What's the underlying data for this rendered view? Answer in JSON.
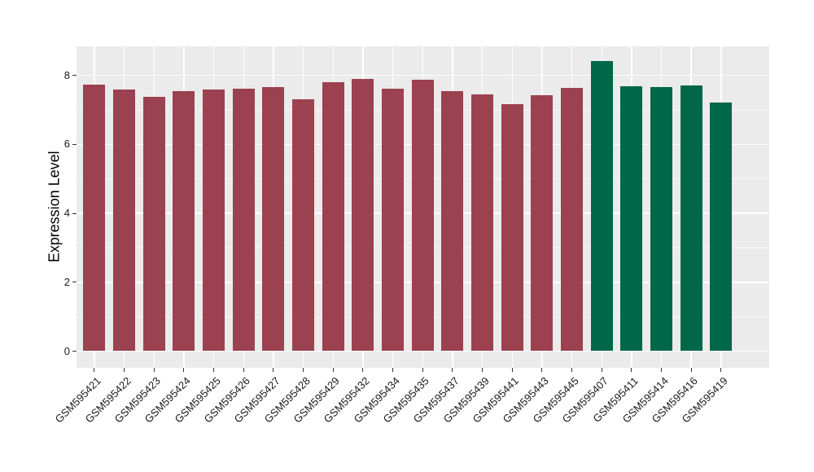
{
  "chart_data": {
    "type": "bar",
    "title": "",
    "xlabel": "",
    "ylabel": "Expression Level",
    "ylim": [
      -0.46,
      8.84
    ],
    "yticks": [
      0,
      2,
      4,
      6,
      8
    ],
    "minor_gridlines": [
      1,
      3,
      5,
      7
    ],
    "grid": "on",
    "legend": "none",
    "panel_background": "#EBEBEB",
    "gridline_color": "#FFFFFF",
    "axis_text_color": "#1a1a1a",
    "tick_mark_color": "#333333",
    "categories": [
      "GSM595421",
      "GSM595422",
      "GSM595423",
      "GSM595424",
      "GSM595425",
      "GSM595426",
      "GSM595427",
      "GSM595428",
      "GSM595429",
      "GSM595432",
      "GSM595434",
      "GSM595435",
      "GSM595437",
      "GSM595439",
      "GSM595441",
      "GSM595443",
      "GSM595445",
      "GSM595407",
      "GSM595411",
      "GSM595414",
      "GSM595416",
      "GSM595419"
    ],
    "values": [
      7.74,
      7.59,
      7.38,
      7.55,
      7.58,
      7.62,
      7.66,
      7.3,
      7.81,
      7.89,
      7.61,
      7.87,
      7.55,
      7.44,
      7.17,
      7.42,
      7.64,
      8.42,
      7.69,
      7.66,
      7.72,
      7.21
    ],
    "groups": [
      "group1",
      "group1",
      "group1",
      "group1",
      "group1",
      "group1",
      "group1",
      "group1",
      "group1",
      "group1",
      "group1",
      "group1",
      "group1",
      "group1",
      "group1",
      "group1",
      "group1",
      "group2",
      "group2",
      "group2",
      "group2",
      "group2"
    ],
    "group_colors": {
      "group1": "#9B4150",
      "group2": "#006849"
    }
  }
}
